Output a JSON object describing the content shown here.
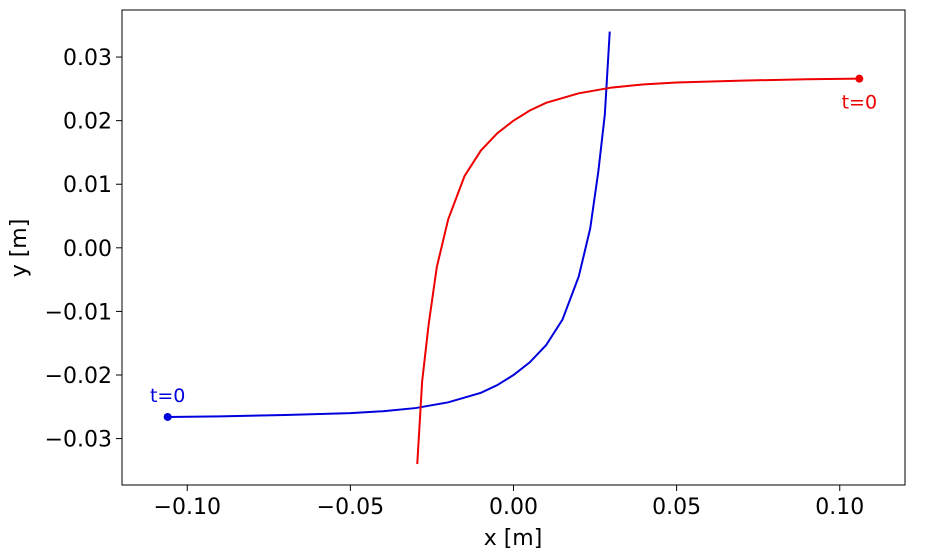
{
  "chart_data": {
    "type": "line",
    "xlabel": "x [m]",
    "ylabel": "y [m]",
    "xlim": [
      -0.12,
      0.12
    ],
    "xticks": [
      {
        "value": -0.1,
        "label": "−0.10"
      },
      {
        "value": -0.05,
        "label": "−0.05"
      },
      {
        "value": 0,
        "label": "0.00"
      },
      0.05,
      {
        "value": 0.1,
        "label": "0.10"
      }
    ],
    "ylim": [
      -0.0373,
      0.0374
    ],
    "yticks": [
      {
        "value": -0.03,
        "label": "−0.03"
      },
      {
        "value": -0.02,
        "label": "−0.02"
      },
      {
        "value": -0.01,
        "label": "−0.01"
      },
      {
        "value": 0,
        "label": "0.00"
      },
      0.01,
      0.02,
      0.03
    ],
    "series": [
      {
        "color": "#0000dd",
        "annotation": "t=0",
        "x": [
          -0.106,
          -0.09,
          -0.07,
          -0.05,
          -0.04,
          -0.03,
          -0.02,
          -0.01,
          -0.005,
          0,
          0.005,
          0.01,
          0.015,
          0.02,
          0.0235,
          0.026,
          0.028,
          0.0295
        ],
        "values": [
          -0.0266,
          -0.0265,
          -0.0263,
          -0.026,
          -0.0257,
          -0.0252,
          -0.0243,
          -0.0228,
          -0.0216,
          -0.02,
          -0.018,
          -0.0153,
          -0.0113,
          -0.0045,
          0.003,
          0.012,
          0.021,
          0.034
        ]
      },
      {
        "color": "#ee0000",
        "annotation": "t=0",
        "x": [
          0.106,
          0.09,
          0.07,
          0.05,
          0.04,
          0.03,
          0.02,
          0.01,
          0.005,
          0,
          -0.005,
          -0.01,
          -0.015,
          -0.02,
          -0.0235,
          -0.026,
          -0.028,
          -0.0295
        ],
        "values": [
          0.0266,
          0.0265,
          0.0263,
          0.026,
          0.0257,
          0.0252,
          0.0243,
          0.0228,
          0.0216,
          0.02,
          0.018,
          0.0153,
          0.0113,
          0.0045,
          -0.003,
          -0.012,
          -0.021,
          -0.034
        ]
      }
    ]
  }
}
